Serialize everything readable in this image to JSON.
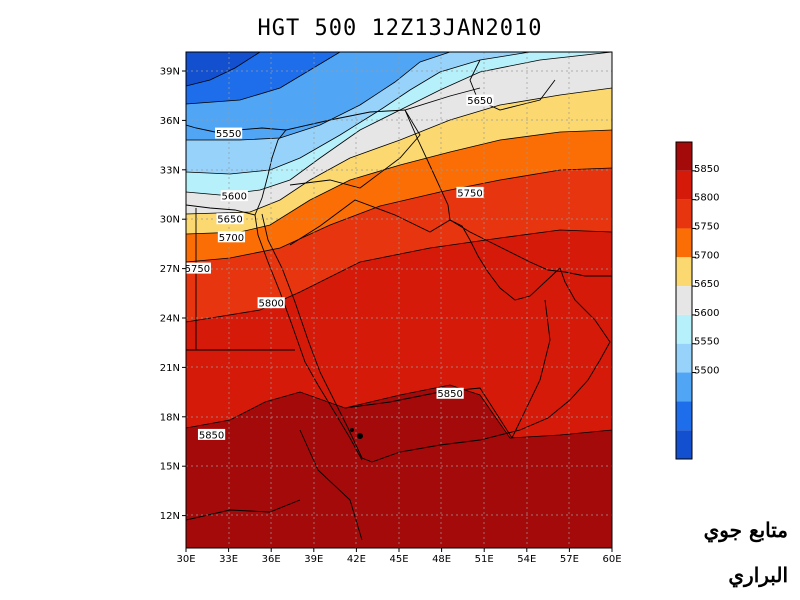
{
  "title": "HGT 500  12Z13JAN2010",
  "map": {
    "lat_ticks": [
      "39N",
      "36N",
      "33N",
      "30N",
      "27N",
      "24N",
      "21N",
      "18N",
      "15N",
      "12N"
    ],
    "lon_ticks": [
      "30E",
      "33E",
      "36E",
      "39E",
      "42E",
      "45E",
      "48E",
      "51E",
      "54E",
      "57E",
      "60E"
    ],
    "contour_labels": [
      {
        "value": "5550",
        "lon": 33,
        "lat": 35.2
      },
      {
        "value": "5600",
        "lon": 33.4,
        "lat": 31.4
      },
      {
        "value": "5650",
        "lon": 33.1,
        "lat": 30.0
      },
      {
        "value": "5700",
        "lon": 33.2,
        "lat": 28.9
      },
      {
        "value": "5750",
        "lon": 30.8,
        "lat": 27.0
      },
      {
        "value": "5800",
        "lon": 36.0,
        "lat": 24.9
      },
      {
        "value": "5850",
        "lon": 31.8,
        "lat": 16.9
      },
      {
        "value": "5850",
        "lon": 48.6,
        "lat": 19.4
      },
      {
        "value": "5750",
        "lon": 50.0,
        "lat": 31.6
      },
      {
        "value": "5650",
        "lon": 50.7,
        "lat": 37.2
      }
    ]
  },
  "colorbar": {
    "labels": [
      "5850",
      "5800",
      "5750",
      "5700",
      "5650",
      "5600",
      "5550",
      "5500"
    ],
    "colors": [
      "#a50a0a",
      "#d51a0a",
      "#e6350f",
      "#fa6e05",
      "#fbd970",
      "#e6e6e6",
      "#b6f0fa",
      "#96d2fa",
      "#50a5f5",
      "#1e6eeb",
      "#1250d0"
    ]
  },
  "signature": {
    "line1": "متابع جوي",
    "line2": "البراري"
  }
}
